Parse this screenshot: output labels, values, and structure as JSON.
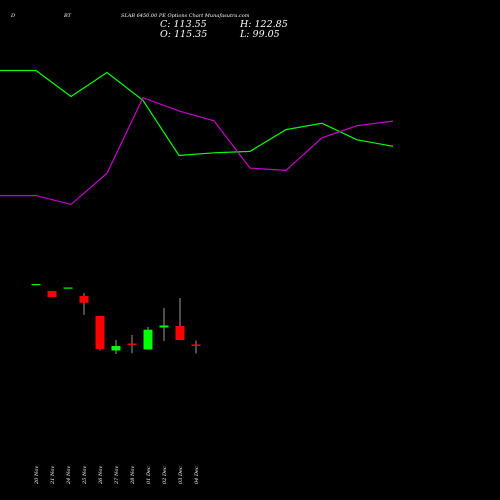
{
  "header": {
    "left_char": "D",
    "interval": "BT",
    "title": "SLAB 6450.00 PE Options Chart Munafasutra.com",
    "close_label": "C: 113.55",
    "open_label": "O: 115.35",
    "high_label": "H: 122.85",
    "low_label": "L: 99.05"
  },
  "chart_data": {
    "type": "candlestick",
    "colors": {
      "background": "#000000",
      "up": "#00ff00",
      "down": "#ff0000",
      "upper_band": "#00ff00",
      "lower_band": "#cc00cc",
      "text": "#ffffff"
    },
    "categories": [
      "20 Nov",
      "21 Nov",
      "24 Nov",
      "25 Nov",
      "26 Nov",
      "27 Nov",
      "28 Nov",
      "01 Dec",
      "02 Dec",
      "03 Dec",
      "04 Dec"
    ],
    "candles": [
      {
        "o": 460,
        "h": 460,
        "l": 460,
        "c": 460,
        "dir": "up"
      },
      {
        "o": 390,
        "h": 390,
        "l": 330,
        "c": 330,
        "dir": "down"
      },
      {
        "o": 425,
        "h": 425,
        "l": 425,
        "c": 425,
        "dir": "up"
      },
      {
        "o": 340,
        "h": 370,
        "l": 150,
        "c": 272,
        "dir": "down"
      },
      {
        "o": 140,
        "h": 140,
        "l": -205,
        "c": -190,
        "dir": "down"
      },
      {
        "o": -205,
        "h": -100,
        "l": -240,
        "c": -160,
        "dir": "up"
      },
      {
        "o": -135,
        "h": -50,
        "l": -232,
        "c": -150,
        "dir": "down"
      },
      {
        "o": -195,
        "h": 30,
        "l": -195,
        "c": 3,
        "dir": "up"
      },
      {
        "o": 25,
        "h": 220,
        "l": -110,
        "c": 45,
        "dir": "up"
      },
      {
        "o": 40,
        "h": 320,
        "l": -100,
        "c": -100,
        "dir": "down"
      },
      {
        "o": -145,
        "h": -105,
        "l": -235,
        "c": -160,
        "dir": "down"
      }
    ],
    "upper_band": [
      5280,
      5280,
      4515,
      5220,
      4400,
      2780,
      2860,
      2900,
      3540,
      3725,
      3240,
      3050
    ],
    "lower_band": [
      1600,
      1600,
      1340,
      2260,
      4480,
      4090,
      3800,
      2410,
      2340,
      3300,
      3655,
      3790
    ]
  }
}
